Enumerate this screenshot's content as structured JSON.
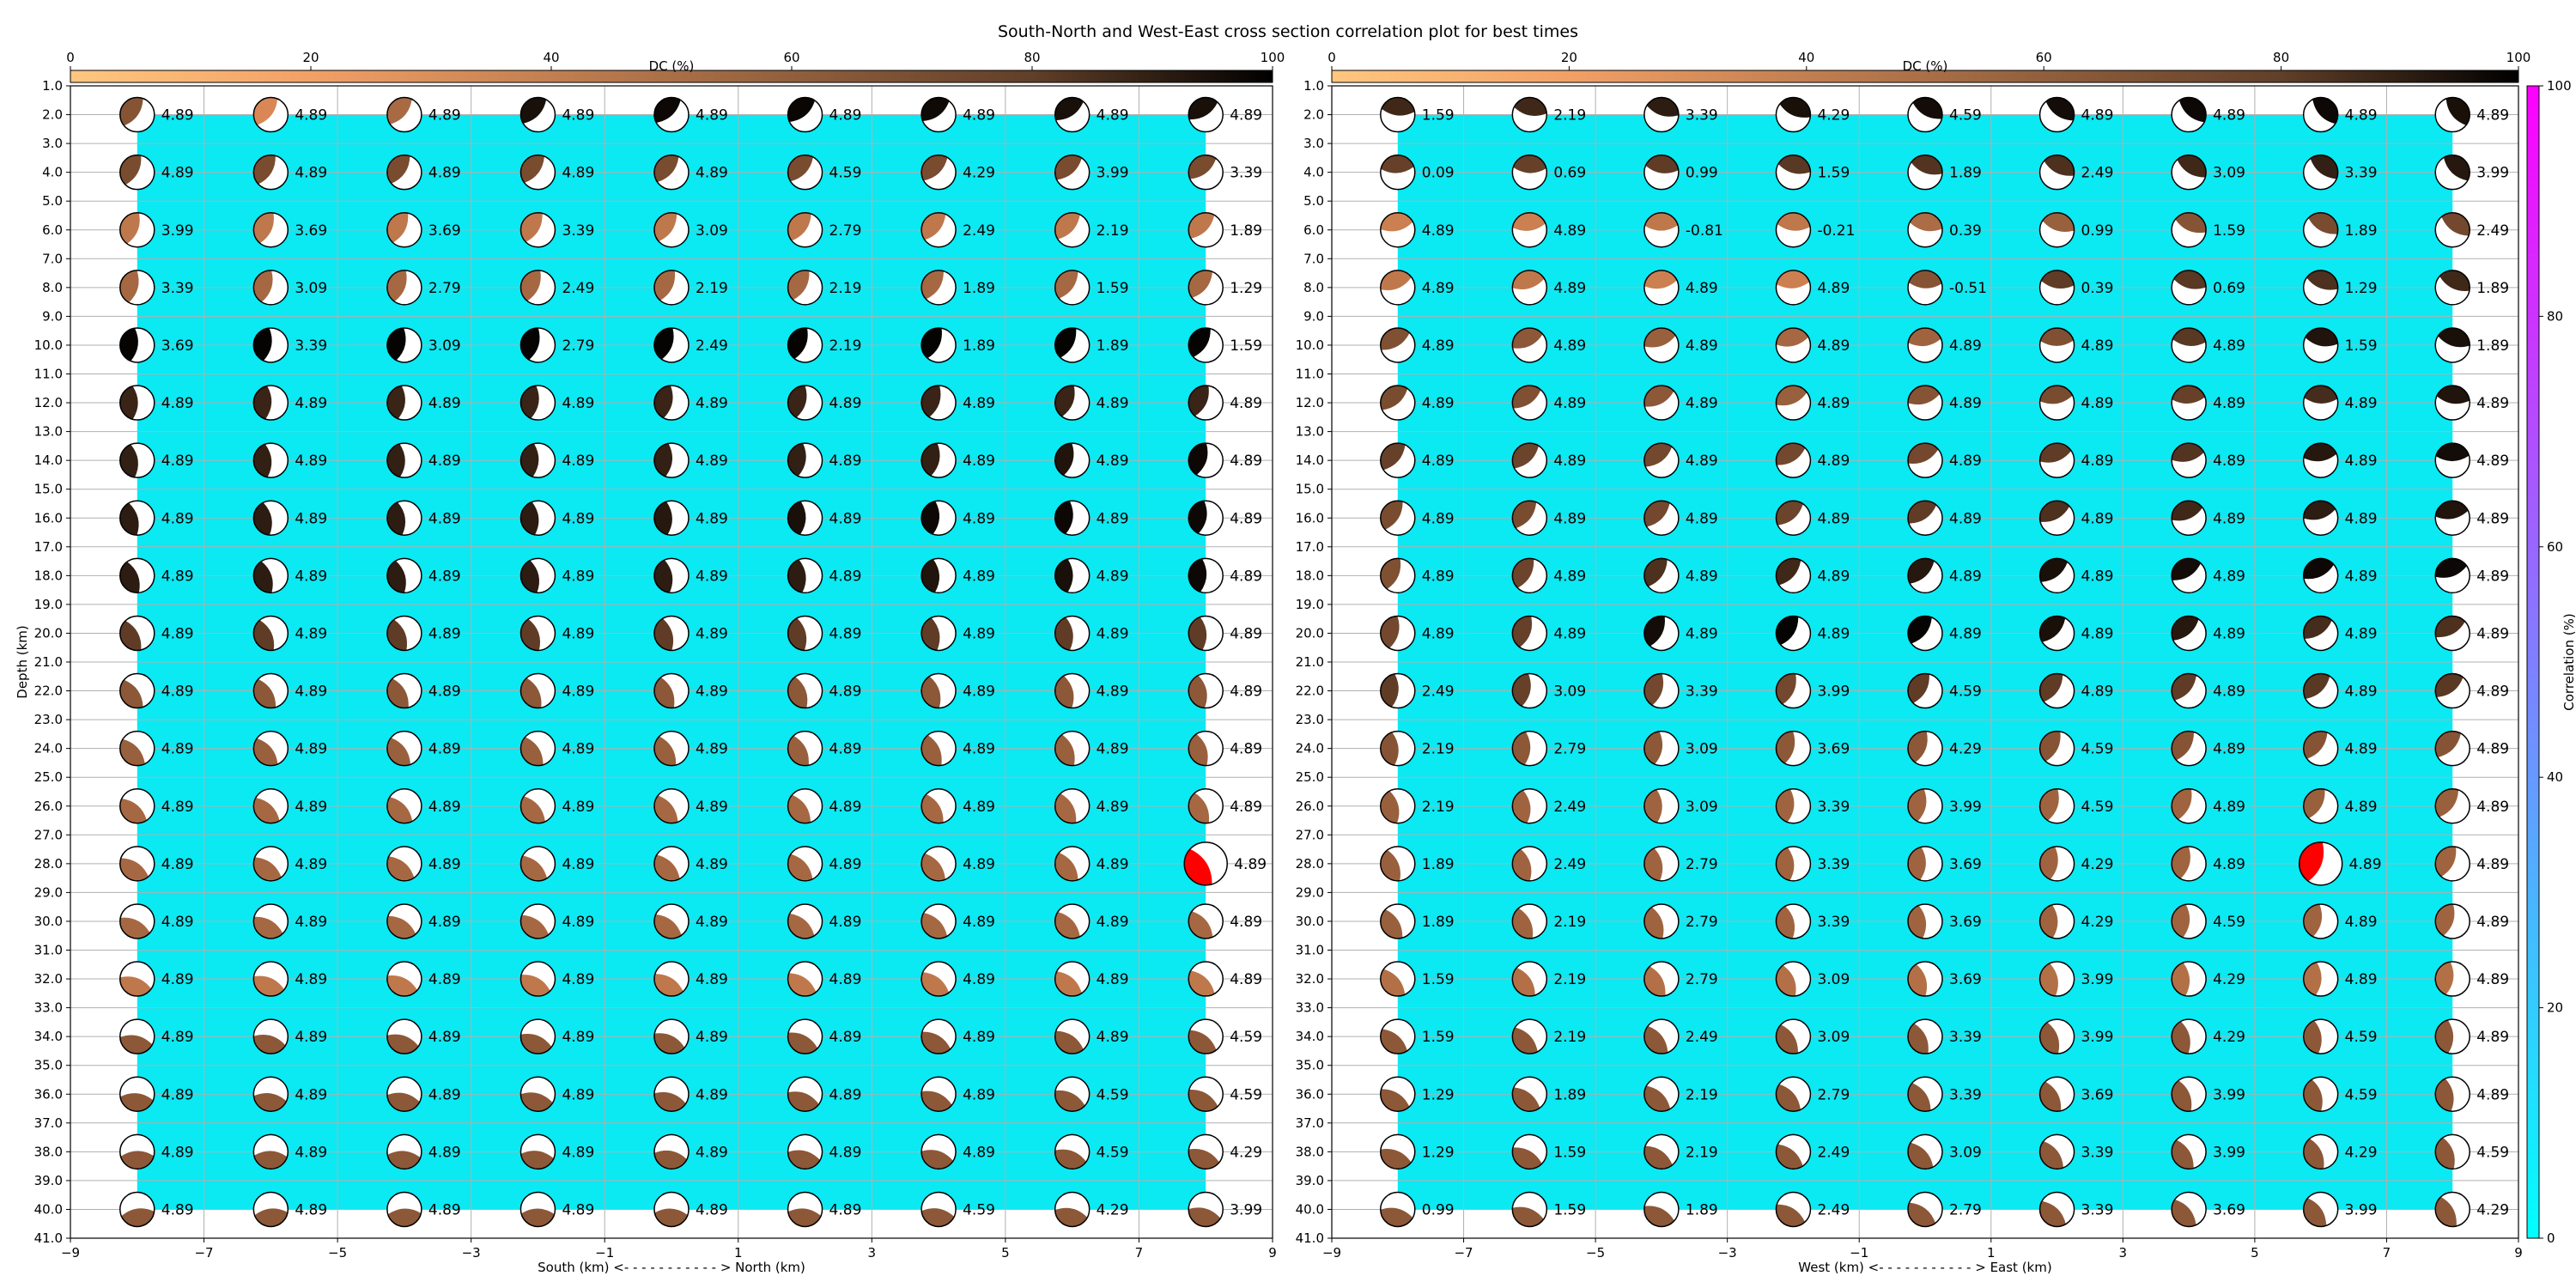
{
  "chart_data": {
    "type": "scatter",
    "title": "South-North and West-East cross section correlation plot for best times",
    "colorbar_top": {
      "label": "DC (%)",
      "ticks": [
        0,
        20,
        40,
        60,
        80,
        100
      ],
      "colormap": "copper (reversed)"
    },
    "colorbar_side": {
      "label": "Correlation (%)",
      "ticks": [
        0,
        20,
        40,
        60,
        80,
        100
      ],
      "colormap": "cool",
      "colors": [
        "#00ffff",
        "#ff00ff"
      ]
    },
    "background_color": "#0be9f3",
    "best_solution_color": "#ff0000",
    "panels": [
      {
        "name": "south-north",
        "xlabel": "South (km) <- - - - - - - - - - - > North (km)",
        "ylabel": "Depth (km)",
        "xlim": [
          -9,
          9
        ],
        "xticks": [
          -9,
          -7,
          -5,
          -3,
          -1,
          1,
          3,
          5,
          7,
          9
        ],
        "ylim": [
          41,
          1
        ],
        "yticks": [
          "1.0",
          "2.0",
          "3.0",
          "4.0",
          "5.0",
          "6.0",
          "7.0",
          "8.0",
          "9.0",
          "10.0",
          "11.0",
          "12.0",
          "13.0",
          "14.0",
          "15.0",
          "16.0",
          "17.0",
          "18.0",
          "19.0",
          "20.0",
          "21.0",
          "22.0",
          "23.0",
          "24.0",
          "25.0",
          "26.0",
          "27.0",
          "28.0",
          "29.0",
          "30.0",
          "31.0",
          "32.0",
          "33.0",
          "34.0",
          "35.0",
          "36.0",
          "37.0",
          "38.0",
          "39.0",
          "40.0",
          "41.0"
        ],
        "x": [
          -8,
          -6,
          -4,
          -2,
          0,
          2,
          4,
          6,
          8
        ],
        "depths": [
          2,
          4,
          6,
          8,
          10,
          12,
          14,
          16,
          18,
          20,
          22,
          24,
          26,
          28,
          30,
          32,
          34,
          36,
          38,
          40
        ],
        "best": {
          "x": 8,
          "depth": 28
        },
        "magnitudes": [
          [
            "4.89",
            "4.89",
            "4.89",
            "4.89",
            "4.89",
            "4.89",
            "4.89",
            "4.89",
            "4.89"
          ],
          [
            "4.89",
            "4.89",
            "4.89",
            "4.89",
            "4.89",
            "4.59",
            "4.29",
            "3.99",
            "3.39"
          ],
          [
            "3.99",
            "3.69",
            "3.69",
            "3.39",
            "3.09",
            "2.79",
            "2.49",
            "2.19",
            "1.89"
          ],
          [
            "3.39",
            "3.09",
            "2.79",
            "2.49",
            "2.19",
            "2.19",
            "1.89",
            "1.59",
            "1.29"
          ],
          [
            "3.69",
            "3.39",
            "3.09",
            "2.79",
            "2.49",
            "2.19",
            "1.89",
            "1.89",
            "1.59"
          ],
          [
            "4.89",
            "4.89",
            "4.89",
            "4.89",
            "4.89",
            "4.89",
            "4.89",
            "4.89",
            "4.89"
          ],
          [
            "4.89",
            "4.89",
            "4.89",
            "4.89",
            "4.89",
            "4.89",
            "4.89",
            "4.89",
            "4.89"
          ],
          [
            "4.89",
            "4.89",
            "4.89",
            "4.89",
            "4.89",
            "4.89",
            "4.89",
            "4.89",
            "4.89"
          ],
          [
            "4.89",
            "4.89",
            "4.89",
            "4.89",
            "4.89",
            "4.89",
            "4.89",
            "4.89",
            "4.89"
          ],
          [
            "4.89",
            "4.89",
            "4.89",
            "4.89",
            "4.89",
            "4.89",
            "4.89",
            "4.89",
            "4.89"
          ],
          [
            "4.89",
            "4.89",
            "4.89",
            "4.89",
            "4.89",
            "4.89",
            "4.89",
            "4.89",
            "4.89"
          ],
          [
            "4.89",
            "4.89",
            "4.89",
            "4.89",
            "4.89",
            "4.89",
            "4.89",
            "4.89",
            "4.89"
          ],
          [
            "4.89",
            "4.89",
            "4.89",
            "4.89",
            "4.89",
            "4.89",
            "4.89",
            "4.89",
            "4.89"
          ],
          [
            "4.89",
            "4.89",
            "4.89",
            "4.89",
            "4.89",
            "4.89",
            "4.89",
            "4.89",
            "4.89"
          ],
          [
            "4.89",
            "4.89",
            "4.89",
            "4.89",
            "4.89",
            "4.89",
            "4.89",
            "4.89",
            "4.89"
          ],
          [
            "4.89",
            "4.89",
            "4.89",
            "4.89",
            "4.89",
            "4.89",
            "4.89",
            "4.89",
            "4.89"
          ],
          [
            "4.89",
            "4.89",
            "4.89",
            "4.89",
            "4.89",
            "4.89",
            "4.89",
            "4.89",
            "4.59"
          ],
          [
            "4.89",
            "4.89",
            "4.89",
            "4.89",
            "4.89",
            "4.89",
            "4.89",
            "4.59",
            "4.59"
          ],
          [
            "4.89",
            "4.89",
            "4.89",
            "4.89",
            "4.89",
            "4.89",
            "4.89",
            "4.59",
            "4.29"
          ],
          [
            "4.89",
            "4.89",
            "4.89",
            "4.89",
            "4.89",
            "4.89",
            "4.59",
            "4.29",
            "3.99"
          ]
        ],
        "dc": [
          [
            58,
            32,
            47,
            92,
            96,
            97,
            95,
            92,
            92
          ],
          [
            62,
            62,
            62,
            62,
            62,
            62,
            62,
            62,
            62
          ],
          [
            40,
            40,
            40,
            40,
            40,
            40,
            40,
            40,
            40
          ],
          [
            48,
            48,
            48,
            48,
            48,
            48,
            48,
            48,
            48
          ],
          [
            98,
            98,
            98,
            98,
            98,
            98,
            98,
            98,
            98
          ],
          [
            82,
            82,
            82,
            82,
            82,
            82,
            82,
            82,
            82
          ],
          [
            84,
            84,
            84,
            84,
            84,
            84,
            84,
            90,
            96
          ],
          [
            86,
            86,
            86,
            86,
            88,
            92,
            96,
            96,
            96
          ],
          [
            86,
            86,
            86,
            86,
            86,
            86,
            90,
            92,
            96
          ],
          [
            70,
            70,
            70,
            70,
            70,
            70,
            70,
            70,
            70
          ],
          [
            56,
            56,
            56,
            56,
            56,
            56,
            56,
            56,
            56
          ],
          [
            52,
            52,
            52,
            52,
            52,
            52,
            52,
            52,
            52
          ],
          [
            48,
            48,
            48,
            48,
            48,
            48,
            48,
            48,
            48
          ],
          [
            48,
            48,
            48,
            48,
            48,
            48,
            48,
            48,
            48
          ],
          [
            48,
            48,
            48,
            48,
            48,
            48,
            48,
            48,
            48
          ],
          [
            40,
            40,
            40,
            40,
            40,
            40,
            40,
            40,
            40
          ],
          [
            56,
            56,
            56,
            56,
            56,
            56,
            56,
            56,
            56
          ],
          [
            56,
            56,
            56,
            56,
            56,
            56,
            56,
            56,
            56
          ],
          [
            56,
            56,
            56,
            56,
            56,
            56,
            56,
            56,
            56
          ],
          [
            56,
            56,
            56,
            56,
            56,
            56,
            56,
            56,
            56
          ]
        ]
      },
      {
        "name": "west-east",
        "xlabel": "West (km) <- - - - - - - - - - - > East (km)",
        "ylabel": "",
        "xlim": [
          -9,
          9
        ],
        "xticks": [
          -9,
          -7,
          -5,
          -3,
          -1,
          1,
          3,
          5,
          7,
          9
        ],
        "ylim": [
          41,
          1
        ],
        "yticks": [
          "1.0",
          "2.0",
          "3.0",
          "4.0",
          "5.0",
          "6.0",
          "7.0",
          "8.0",
          "9.0",
          "10.0",
          "11.0",
          "12.0",
          "13.0",
          "14.0",
          "15.0",
          "16.0",
          "17.0",
          "18.0",
          "19.0",
          "20.0",
          "21.0",
          "22.0",
          "23.0",
          "24.0",
          "25.0",
          "26.0",
          "27.0",
          "28.0",
          "29.0",
          "30.0",
          "31.0",
          "32.0",
          "33.0",
          "34.0",
          "35.0",
          "36.0",
          "37.0",
          "38.0",
          "39.0",
          "40.0",
          "41.0"
        ],
        "x": [
          -8,
          -6,
          -4,
          -2,
          0,
          2,
          4,
          6,
          8
        ],
        "depths": [
          2,
          4,
          6,
          8,
          10,
          12,
          14,
          16,
          18,
          20,
          22,
          24,
          26,
          28,
          30,
          32,
          34,
          36,
          38,
          40
        ],
        "best": {
          "x": 6,
          "depth": 28
        },
        "magnitudes": [
          [
            "1.59",
            "2.19",
            "3.39",
            "4.29",
            "4.59",
            "4.89",
            "4.89",
            "4.89",
            "4.89"
          ],
          [
            "0.09",
            "0.69",
            "0.99",
            "1.59",
            "1.89",
            "2.49",
            "3.09",
            "3.39",
            "3.99"
          ],
          [
            "4.89",
            "4.89",
            "-0.81",
            "-0.21",
            "0.39",
            "0.99",
            "1.59",
            "1.89",
            "2.49"
          ],
          [
            "4.89",
            "4.89",
            "4.89",
            "4.89",
            "-0.51",
            "0.39",
            "0.69",
            "1.29",
            "1.89"
          ],
          [
            "4.89",
            "4.89",
            "4.89",
            "4.89",
            "4.89",
            "4.89",
            "4.89",
            "1.59",
            "1.89"
          ],
          [
            "4.89",
            "4.89",
            "4.89",
            "4.89",
            "4.89",
            "4.89",
            "4.89",
            "4.89",
            "4.89"
          ],
          [
            "4.89",
            "4.89",
            "4.89",
            "4.89",
            "4.89",
            "4.89",
            "4.89",
            "4.89",
            "4.89"
          ],
          [
            "4.89",
            "4.89",
            "4.89",
            "4.89",
            "4.89",
            "4.89",
            "4.89",
            "4.89",
            "4.89"
          ],
          [
            "4.89",
            "4.89",
            "4.89",
            "4.89",
            "4.89",
            "4.89",
            "4.89",
            "4.89",
            "4.89"
          ],
          [
            "4.89",
            "4.89",
            "4.89",
            "4.89",
            "4.89",
            "4.89",
            "4.89",
            "4.89",
            "4.89"
          ],
          [
            "2.49",
            "3.09",
            "3.39",
            "3.99",
            "4.59",
            "4.89",
            "4.89",
            "4.89",
            "4.89"
          ],
          [
            "2.19",
            "2.79",
            "3.09",
            "3.69",
            "4.29",
            "4.59",
            "4.89",
            "4.89",
            "4.89"
          ],
          [
            "2.19",
            "2.49",
            "3.09",
            "3.39",
            "3.99",
            "4.59",
            "4.89",
            "4.89",
            "4.89"
          ],
          [
            "1.89",
            "2.49",
            "2.79",
            "3.39",
            "3.69",
            "4.29",
            "4.89",
            "4.89",
            "4.89"
          ],
          [
            "1.89",
            "2.19",
            "2.79",
            "3.39",
            "3.69",
            "4.29",
            "4.59",
            "4.89",
            "4.89"
          ],
          [
            "1.59",
            "2.19",
            "2.79",
            "3.09",
            "3.69",
            "3.99",
            "4.29",
            "4.89",
            "4.89"
          ],
          [
            "1.59",
            "2.19",
            "2.49",
            "3.09",
            "3.39",
            "3.99",
            "4.29",
            "4.59",
            "4.89"
          ],
          [
            "1.29",
            "1.89",
            "2.19",
            "2.79",
            "3.39",
            "3.69",
            "3.99",
            "4.59",
            "4.89"
          ],
          [
            "1.29",
            "1.59",
            "2.19",
            "2.49",
            "3.09",
            "3.39",
            "3.99",
            "4.29",
            "4.59"
          ],
          [
            "0.99",
            "1.59",
            "1.89",
            "2.49",
            "2.79",
            "3.39",
            "3.69",
            "3.99",
            "4.29"
          ]
        ],
        "dc": [
          [
            80,
            80,
            86,
            92,
            94,
            94,
            96,
            96,
            92
          ],
          [
            68,
            68,
            70,
            72,
            74,
            76,
            80,
            84,
            88
          ],
          [
            36,
            36,
            40,
            40,
            46,
            52,
            58,
            62,
            64
          ],
          [
            40,
            40,
            36,
            36,
            58,
            70,
            72,
            76,
            80
          ],
          [
            60,
            56,
            52,
            48,
            50,
            60,
            72,
            90,
            92
          ],
          [
            62,
            60,
            56,
            52,
            58,
            62,
            68,
            78,
            90
          ],
          [
            68,
            66,
            64,
            64,
            64,
            70,
            74,
            88,
            94
          ],
          [
            62,
            62,
            64,
            66,
            70,
            76,
            80,
            86,
            90
          ],
          [
            60,
            66,
            76,
            80,
            88,
            92,
            94,
            96,
            96
          ],
          [
            64,
            68,
            94,
            98,
            98,
            92,
            88,
            78,
            76
          ],
          [
            70,
            68,
            64,
            64,
            70,
            70,
            70,
            72,
            72
          ],
          [
            58,
            56,
            56,
            56,
            56,
            58,
            58,
            58,
            58
          ],
          [
            52,
            50,
            50,
            50,
            50,
            50,
            50,
            52,
            52
          ],
          [
            52,
            50,
            50,
            50,
            50,
            50,
            50,
            50,
            50
          ],
          [
            52,
            50,
            50,
            50,
            50,
            50,
            50,
            50,
            50
          ],
          [
            44,
            44,
            44,
            44,
            44,
            44,
            44,
            44,
            44
          ],
          [
            56,
            56,
            56,
            56,
            56,
            56,
            56,
            56,
            56
          ],
          [
            56,
            56,
            56,
            56,
            56,
            56,
            56,
            56,
            56
          ],
          [
            56,
            56,
            56,
            56,
            56,
            56,
            56,
            56,
            56
          ],
          [
            56,
            56,
            56,
            56,
            56,
            56,
            56,
            56,
            56
          ]
        ]
      }
    ]
  }
}
